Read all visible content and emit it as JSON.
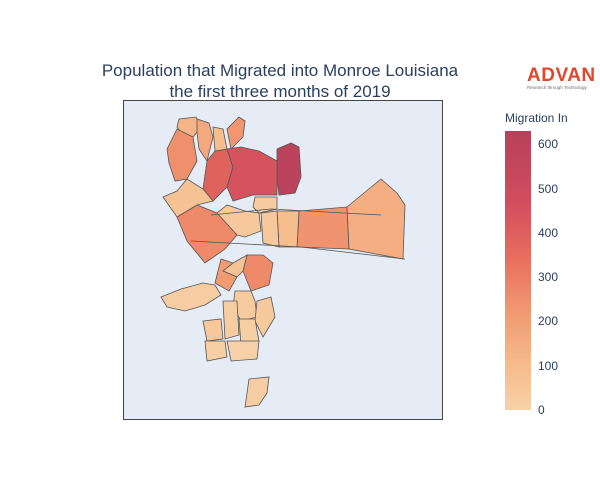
{
  "title_line1": "Population that Migrated into Monroe Louisiana",
  "title_line2": "the first three months of 2019",
  "brand": {
    "name": "ADVAN",
    "tagline": "Research through Technology",
    "color": "#e0472b"
  },
  "colorbar": {
    "title": "Migration In",
    "min": 0,
    "max": 630,
    "ticks": [
      0,
      100,
      200,
      300,
      400,
      500,
      600
    ],
    "colorscale": [
      "#f6d2a9",
      "#f6bd8c",
      "#f19a72",
      "#e86d5d",
      "#d14d5e",
      "#b7415c"
    ]
  },
  "map": {
    "background": "#e5ecf6",
    "region_values": [
      150,
      200,
      280,
      420,
      610,
      120,
      260,
      480,
      300,
      90,
      60,
      40,
      270,
      120,
      60,
      180,
      300,
      90,
      250,
      30,
      40,
      50,
      60,
      30,
      20,
      20,
      10,
      30
    ]
  }
}
